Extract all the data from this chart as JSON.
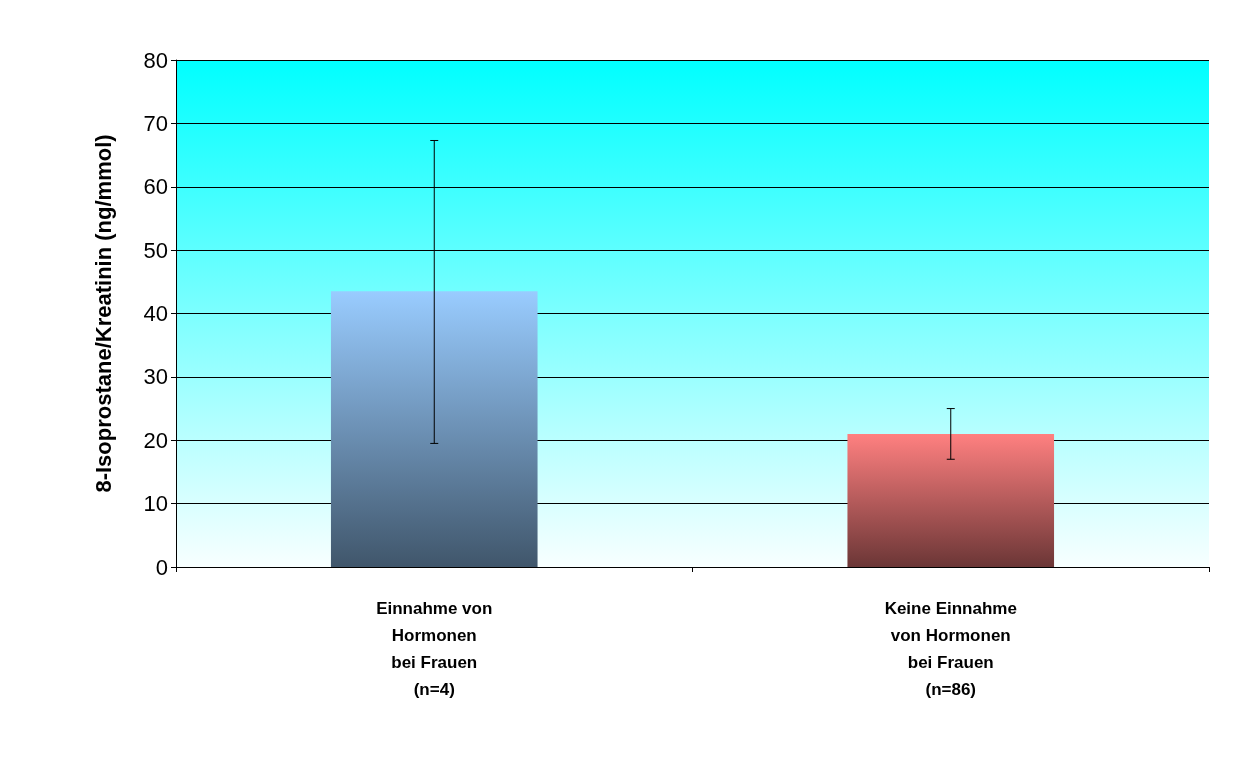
{
  "chart_data": {
    "type": "bar",
    "ylabel": "8-Isoprostane/Kreatinin (ng/mmol)",
    "categories": [
      "Einnahme von\nHormonen\nbei Frauen\n(n=4)",
      "Keine Einnahme\nvon Hormonen\nbei Frauen\n(n=86)"
    ],
    "values": [
      43.5,
      21
    ],
    "colors": [
      "#99ccff",
      "#ff8080"
    ],
    "errors": [
      [
        19.5,
        67.3
      ],
      [
        17,
        25
      ]
    ],
    "ylim": [
      0,
      80
    ],
    "yticks": [
      0,
      10,
      20,
      30,
      40,
      50,
      60,
      70,
      80
    ],
    "grid": "y"
  }
}
